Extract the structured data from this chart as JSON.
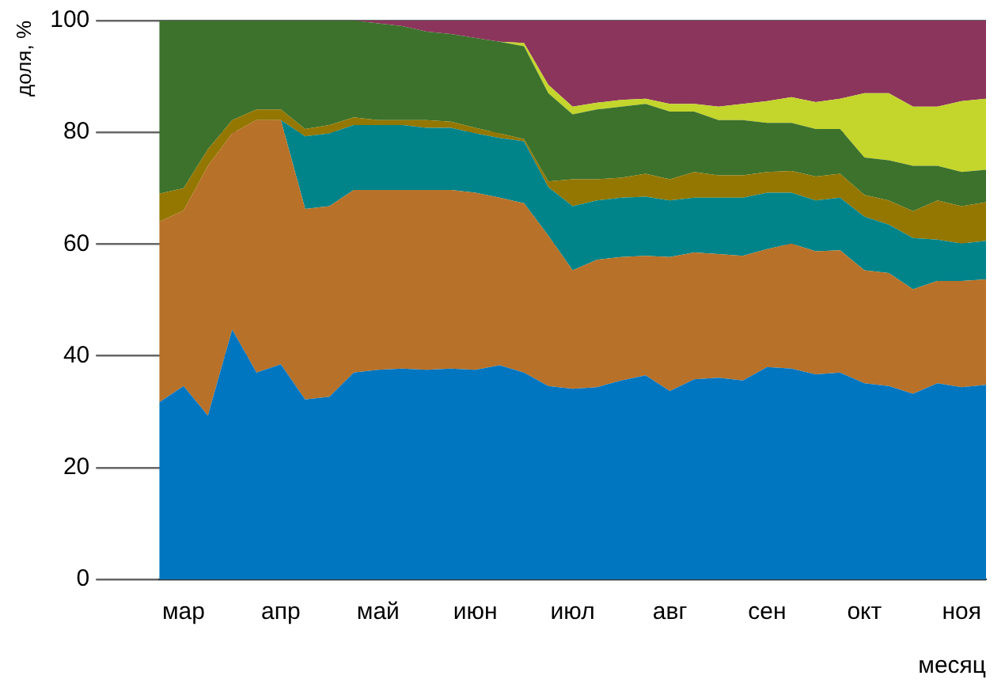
{
  "chart_data": {
    "type": "area",
    "stacked": true,
    "ylabel": "доля, %",
    "xlabel": "месяц",
    "categories": [
      null,
      "мар",
      null,
      null,
      null,
      "апр",
      null,
      null,
      null,
      "май",
      null,
      null,
      null,
      "июн",
      null,
      null,
      null,
      "июл",
      null,
      null,
      null,
      "авг",
      null,
      null,
      null,
      "сен",
      null,
      null,
      null,
      "окт",
      null,
      null,
      null,
      "ноя",
      null
    ],
    "series": [
      {
        "color": "#0075c0",
        "values": [
          31.7,
          34.6,
          29.3,
          44.7,
          37,
          38.5,
          32.2,
          32.7,
          37,
          37.5,
          37.7,
          37.5,
          37.7,
          37.5,
          38.3,
          37,
          34.6,
          34.1,
          34.4,
          35.6,
          36.5,
          33.7,
          35.8,
          36.1,
          35.6,
          38,
          37.7,
          36.7,
          37,
          35.1,
          34.6,
          33.2,
          35.1,
          34.4,
          34.8
        ]
      },
      {
        "color": "#b87128",
        "values": [
          32.3,
          31.4,
          44.7,
          35.1,
          45.2,
          43.7,
          34.1,
          34.1,
          32.7,
          32.2,
          32,
          32.2,
          32,
          31.7,
          30,
          30.3,
          26.9,
          21.2,
          22.8,
          22.1,
          21.4,
          24,
          22.7,
          22.1,
          22.3,
          21.1,
          22.4,
          22,
          21.9,
          20.2,
          20.2,
          18.7,
          18.3,
          19,
          18.9
        ]
      },
      {
        "color": "#00848a",
        "values": [
          0,
          0,
          0,
          0,
          0,
          0,
          13,
          13,
          11.6,
          11.6,
          11.6,
          11.1,
          11.1,
          10.6,
          10.7,
          11.1,
          8.7,
          11.5,
          10.6,
          10.6,
          10.6,
          10.1,
          9.8,
          10.1,
          10.4,
          10.1,
          9.1,
          9.1,
          9.4,
          9.6,
          8.7,
          9.2,
          7.4,
          6.7,
          6.9
        ]
      },
      {
        "color": "#937700",
        "values": [
          5,
          4,
          3,
          2.4,
          1.9,
          1.9,
          1.3,
          1.5,
          1.4,
          0.9,
          0.9,
          1.4,
          1.1,
          1,
          0.8,
          0.4,
          1,
          4.8,
          3.8,
          3.6,
          4.1,
          3.8,
          4.6,
          4,
          4,
          3.7,
          3.9,
          4.3,
          4.3,
          3.9,
          4.3,
          4.8,
          7,
          6.7,
          6.9
        ]
      },
      {
        "color": "#3c722c",
        "values": [
          31,
          30,
          23,
          17.8,
          15.9,
          15.9,
          19.4,
          18.7,
          17.3,
          17.3,
          16.8,
          15.8,
          15.7,
          16.1,
          16.4,
          16.6,
          15.8,
          11.6,
          12.5,
          12.7,
          12.5,
          12.1,
          10.8,
          9.9,
          9.9,
          8.8,
          8.6,
          8.5,
          8,
          6.7,
          7.2,
          8.1,
          6.2,
          6.1,
          5.8
        ]
      },
      {
        "color": "#c4d52c",
        "values": [
          0,
          0,
          0,
          0,
          0,
          0,
          0,
          0,
          0,
          0,
          0,
          0,
          0,
          0,
          0,
          0.6,
          1.5,
          1.4,
          1.2,
          1.2,
          0.9,
          1.4,
          1.4,
          2.4,
          2.9,
          3.9,
          4.6,
          4.8,
          5.4,
          11.5,
          12,
          10.6,
          10.6,
          12.7,
          12.7
        ]
      },
      {
        "color": "#8c355c",
        "values": [
          0,
          0,
          0,
          0,
          0,
          0,
          0,
          0,
          0,
          0.5,
          1,
          2,
          2.4,
          3.1,
          3.8,
          4,
          11.5,
          15.4,
          14.7,
          14.2,
          14,
          14.9,
          14.9,
          15.4,
          14.9,
          14.4,
          13.7,
          14.6,
          14,
          13,
          13,
          15.4,
          15.4,
          14.4,
          14
        ]
      }
    ],
    "ylim": [
      0,
      100
    ],
    "yticks": [
      0,
      20,
      40,
      60,
      80,
      100
    ],
    "grid": "y",
    "legend": false,
    "marker": "none"
  }
}
